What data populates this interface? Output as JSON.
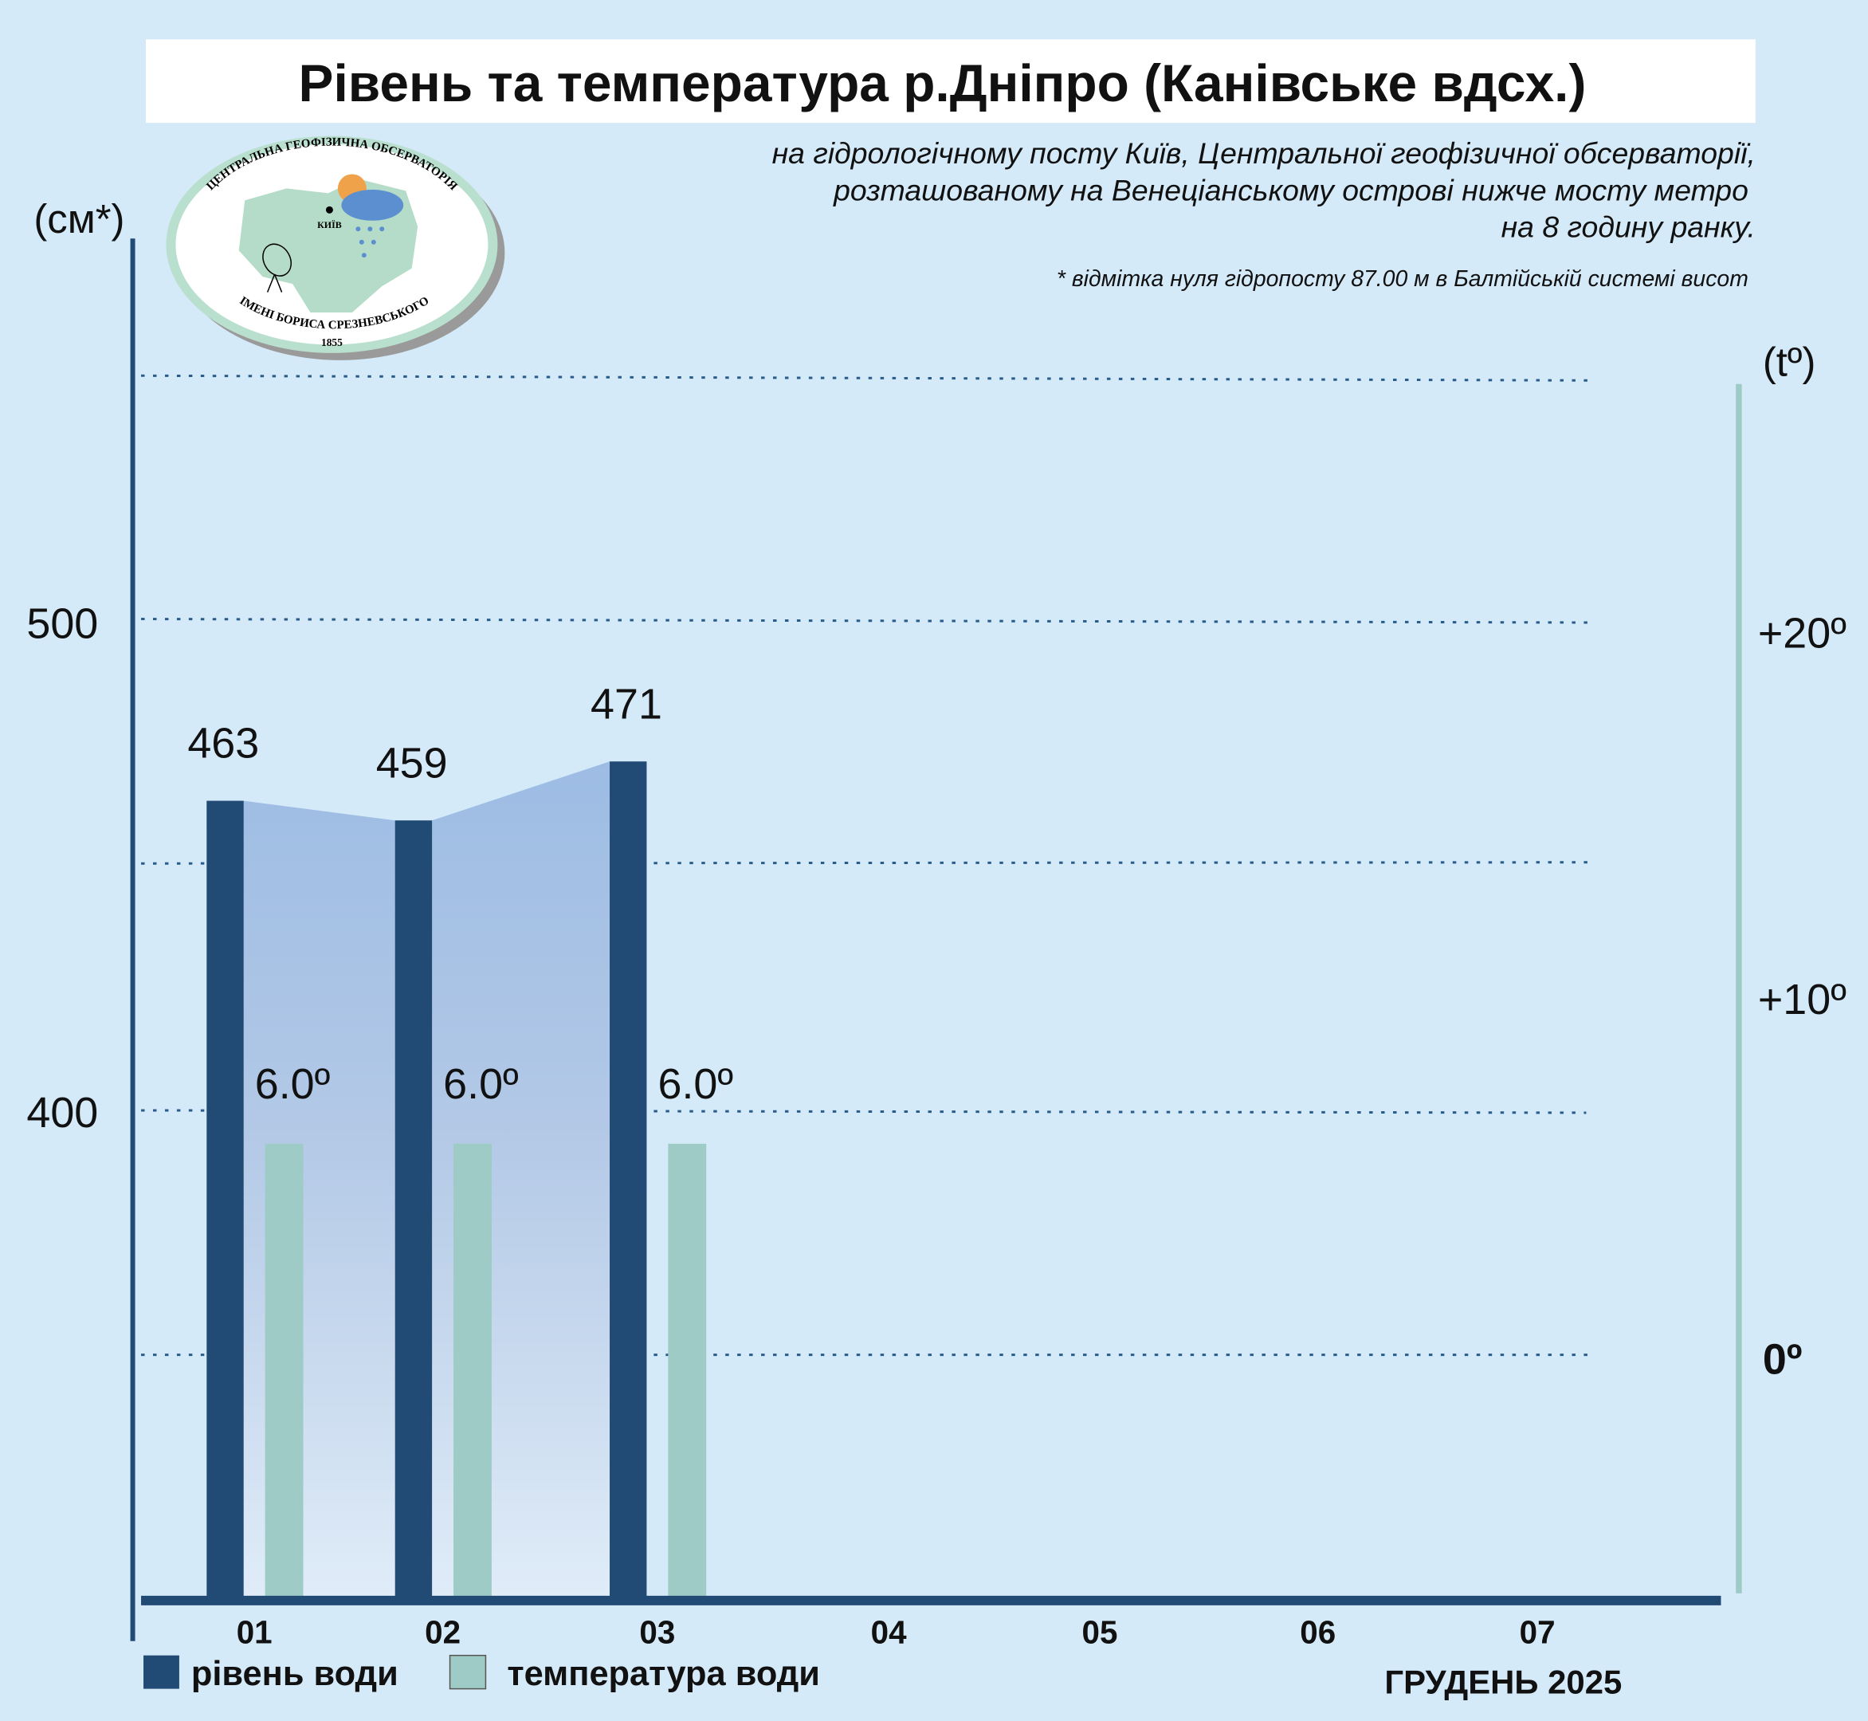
{
  "chart_data": {
    "type": "bar",
    "title": "Рівень та температура р.Дніпро (Канівське вдсх.)",
    "subtitle": [
      "на гідрологічному посту Київ, Центральної геофізичної обсерваторії,",
      "розташованому на Венеціанському острові нижче мосту метро",
      "на 8 годину ранку."
    ],
    "footnote": "* відмітка нуля гідропосту 87.00 м в Балтійській системі висот",
    "categories": [
      "01",
      "02",
      "03",
      "04",
      "05",
      "06",
      "07"
    ],
    "xlabel": "ГРУДЕНЬ 2025",
    "y_left": {
      "label": "(см*)",
      "ticks": [
        "500",
        "400"
      ],
      "ylim": [
        300,
        560
      ]
    },
    "y_right": {
      "label": "(tº)",
      "ticks": [
        "+20º",
        "+10º",
        "0º"
      ],
      "ylim": [
        -7,
        26
      ]
    },
    "series": [
      {
        "name": "рівень води",
        "color": "#214b75",
        "values": [
          463,
          459,
          471,
          null,
          null,
          null,
          null
        ],
        "labels": [
          "463",
          "459",
          "471"
        ]
      },
      {
        "name": "температура води",
        "color": "#9ecbc5",
        "values": [
          6.0,
          6.0,
          6.0,
          null,
          null,
          null,
          null
        ],
        "labels": [
          "6.0º",
          "6.0º",
          "6.0º"
        ]
      }
    ],
    "grid": true,
    "legend": "bottom-left"
  },
  "logo": {
    "top": "ЦЕНТРАЛЬНА ГЕОФІЗИЧНА ОБСЕРВАТОРІЯ",
    "bottom": "ІМЕНІ БОРИСА СРЕЗНЕВСЬКОГО",
    "year": "1855",
    "city": "КИЇВ"
  }
}
